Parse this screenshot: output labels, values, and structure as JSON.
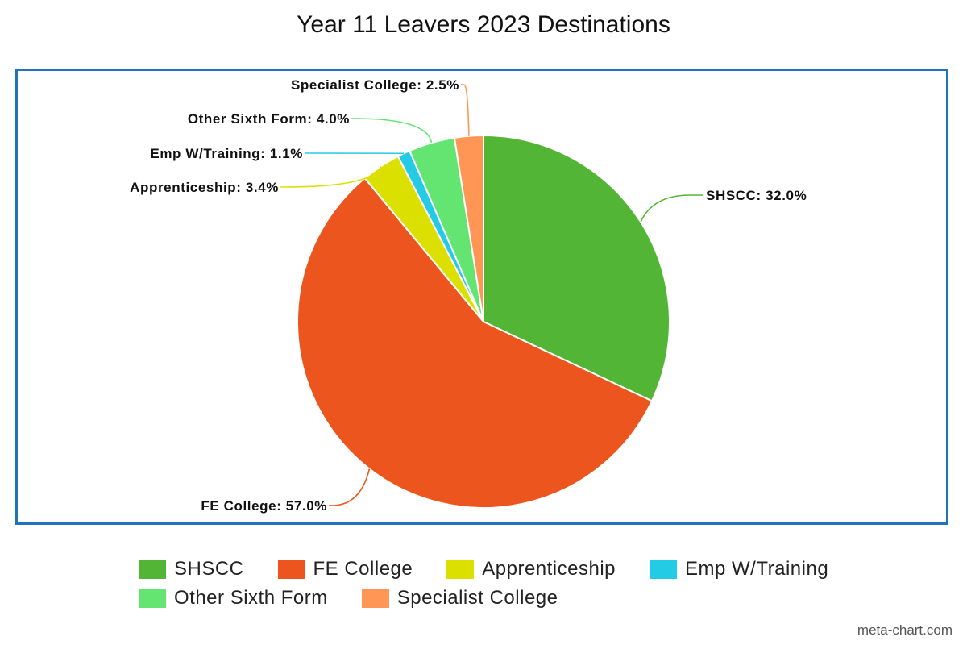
{
  "chart_data": {
    "type": "pie",
    "title": "Year 11 Leavers 2023 Destinations",
    "slices": [
      {
        "name": "SHSCC",
        "value": 32.0,
        "label": "SHSCC: 32.0%",
        "color": "#52b535"
      },
      {
        "name": "FE College",
        "value": 57.0,
        "label": "FE College: 57.0%",
        "color": "#ec561e"
      },
      {
        "name": "Apprenticeship",
        "value": 3.4,
        "label": "Apprenticeship: 3.4%",
        "color": "#dbe000"
      },
      {
        "name": "Emp W/Training",
        "value": 1.1,
        "label": "Emp W/Training: 1.1%",
        "color": "#24cbe5"
      },
      {
        "name": "Other Sixth Form",
        "value": 4.0,
        "label": "Other Sixth Form: 4.0%",
        "color": "#64e572"
      },
      {
        "name": "Specialist College",
        "value": 2.5,
        "label": "Specialist College: 2.5%",
        "color": "#ff9655"
      }
    ],
    "legend_position": "bottom"
  },
  "credit": "meta-chart.com"
}
